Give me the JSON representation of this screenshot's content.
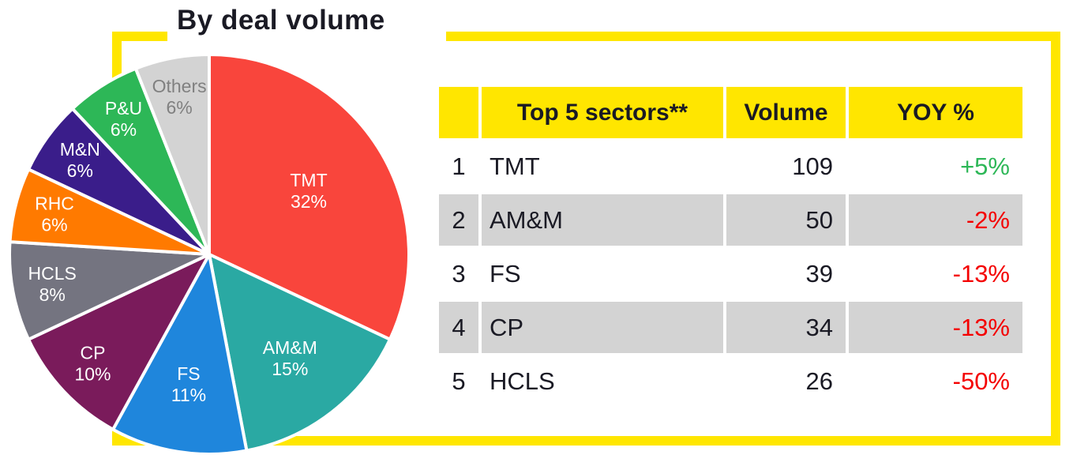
{
  "title": "By deal volume",
  "colors": {
    "frame": "#FFE600",
    "text": "#1A1A24",
    "positive": "#2DB757",
    "negative": "#F40000",
    "row_alt_bg": "#D3D3D3",
    "header_bg": "#FFE600",
    "slice_border": "#FFFFFF"
  },
  "chart_data": {
    "type": "pie",
    "title": "By deal volume",
    "unit": "%",
    "start_angle_deg": -90,
    "direction": "clockwise",
    "segments": [
      {
        "label": "TMT",
        "value": 32,
        "color": "#F9453C",
        "text_color": "#FFFFFF"
      },
      {
        "label": "AM&M",
        "value": 15,
        "color": "#2AA9A3",
        "text_color": "#FFFFFF"
      },
      {
        "label": "FS",
        "value": 11,
        "color": "#1F86DC",
        "text_color": "#FFFFFF"
      },
      {
        "label": "CP",
        "value": 10,
        "color": "#7A1B5B",
        "text_color": "#FFFFFF"
      },
      {
        "label": "HCLS",
        "value": 8,
        "color": "#747480",
        "text_color": "#FFFFFF"
      },
      {
        "label": "RHC",
        "value": 6,
        "color": "#FF7A00",
        "text_color": "#FFFFFF"
      },
      {
        "label": "M&N",
        "value": 6,
        "color": "#3A1D8A",
        "text_color": "#FFFFFF"
      },
      {
        "label": "P&U",
        "value": 6,
        "color": "#2DB757",
        "text_color": "#FFFFFF"
      },
      {
        "label": "Others",
        "value": 6,
        "color": "#D3D3D3",
        "text_color": "#808080"
      }
    ]
  },
  "table": {
    "headers": [
      "",
      "Top 5 sectors**",
      "Volume",
      "YOY %"
    ],
    "rows": [
      {
        "rank": "1",
        "sector": "TMT",
        "volume": "109",
        "yoy": "+5%",
        "yoy_trend": "positive"
      },
      {
        "rank": "2",
        "sector": "AM&M",
        "volume": "50",
        "yoy": "-2%",
        "yoy_trend": "negative"
      },
      {
        "rank": "3",
        "sector": "FS",
        "volume": "39",
        "yoy": "-13%",
        "yoy_trend": "negative"
      },
      {
        "rank": "4",
        "sector": "CP",
        "volume": "34",
        "yoy": "-13%",
        "yoy_trend": "negative"
      },
      {
        "rank": "5",
        "sector": "HCLS",
        "volume": "26",
        "yoy": "-50%",
        "yoy_trend": "negative"
      }
    ]
  }
}
